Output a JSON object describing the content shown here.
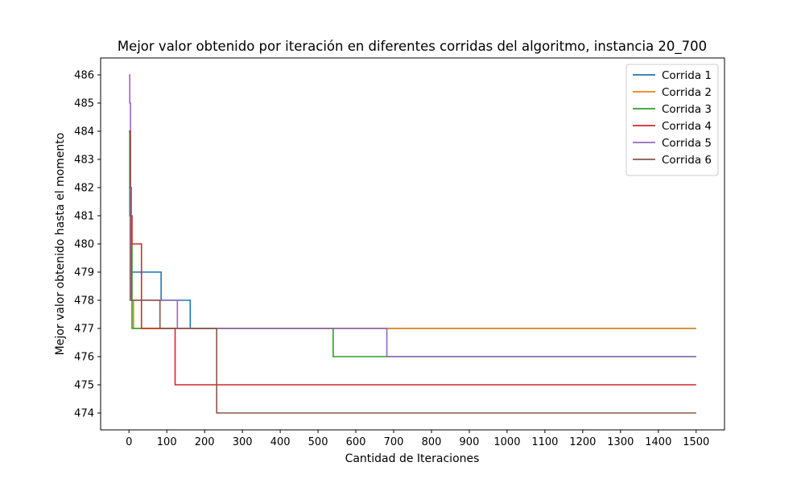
{
  "chart_data": {
    "type": "line",
    "title": "Mejor valor obtenido por iteración en diferentes corridas del algoritmo, instancia 20_700",
    "xlabel": "Cantidad de Iteraciones",
    "ylabel": "Mejor valor obtenido hasta el momento",
    "xlim": [
      -75,
      1575
    ],
    "ylim": [
      473.4,
      486.6
    ],
    "xticks": [
      0,
      100,
      200,
      300,
      400,
      500,
      600,
      700,
      800,
      900,
      1000,
      1100,
      1200,
      1300,
      1400,
      1500
    ],
    "yticks": [
      474,
      475,
      476,
      477,
      478,
      479,
      480,
      481,
      482,
      483,
      484,
      485,
      486
    ],
    "grid": false,
    "legend_position": "top-right",
    "drawstyle": "steps-post",
    "series": [
      {
        "name": "Corrida 1",
        "color": "#1f77b4",
        "points": [
          [
            0,
            482
          ],
          [
            3,
            478
          ],
          [
            6,
            479
          ],
          [
            85,
            478
          ],
          [
            162,
            477
          ],
          [
            1500,
            477
          ]
        ]
      },
      {
        "name": "Corrida 2",
        "color": "#ff7f0e",
        "points": [
          [
            0,
            482
          ],
          [
            3,
            478
          ],
          [
            12,
            477
          ],
          [
            1500,
            477
          ]
        ]
      },
      {
        "name": "Corrida 3",
        "color": "#2ca02c",
        "points": [
          [
            0,
            484
          ],
          [
            2,
            481
          ],
          [
            5,
            480
          ],
          [
            8,
            477
          ],
          [
            540,
            476
          ],
          [
            1500,
            476
          ]
        ]
      },
      {
        "name": "Corrida 4",
        "color": "#d62728",
        "points": [
          [
            0,
            484
          ],
          [
            4,
            481
          ],
          [
            8,
            480
          ],
          [
            33,
            477
          ],
          [
            122,
            475
          ],
          [
            1500,
            475
          ]
        ]
      },
      {
        "name": "Corrida 5",
        "color": "#9467bd",
        "points": [
          [
            0,
            486
          ],
          [
            2,
            485
          ],
          [
            4,
            478
          ],
          [
            128,
            477
          ],
          [
            682,
            476
          ],
          [
            1500,
            476
          ]
        ]
      },
      {
        "name": "Corrida 6",
        "color": "#8c564b",
        "points": [
          [
            0,
            484
          ],
          [
            4,
            482
          ],
          [
            6,
            478
          ],
          [
            82,
            477
          ],
          [
            232,
            474
          ],
          [
            1500,
            474
          ]
        ]
      }
    ]
  }
}
